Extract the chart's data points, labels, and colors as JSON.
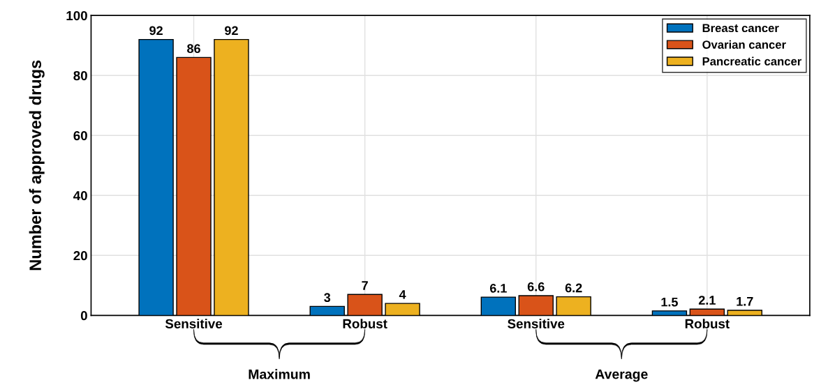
{
  "chart_data": {
    "type": "bar",
    "ylabel": "Number of approved drugs",
    "categories": [
      "Sensitive",
      "Robust",
      "Sensitive",
      "Robust"
    ],
    "series": [
      {
        "name": "Breast cancer",
        "color": "#0072bd",
        "values": [
          92,
          3,
          6.1,
          1.5
        ]
      },
      {
        "name": "Ovarian cancer",
        "color": "#d95319",
        "values": [
          86,
          7,
          6.6,
          2.1
        ]
      },
      {
        "name": "Pancreatic cancer",
        "color": "#edb120",
        "values": [
          92,
          4,
          6.2,
          1.7
        ]
      }
    ],
    "ylim": [
      0,
      100
    ],
    "yticks": [
      0,
      20,
      40,
      60,
      80,
      100
    ],
    "grid": true,
    "legend": "top right",
    "data_labels": true,
    "annotations": [
      "Maximum",
      "Average"
    ]
  }
}
